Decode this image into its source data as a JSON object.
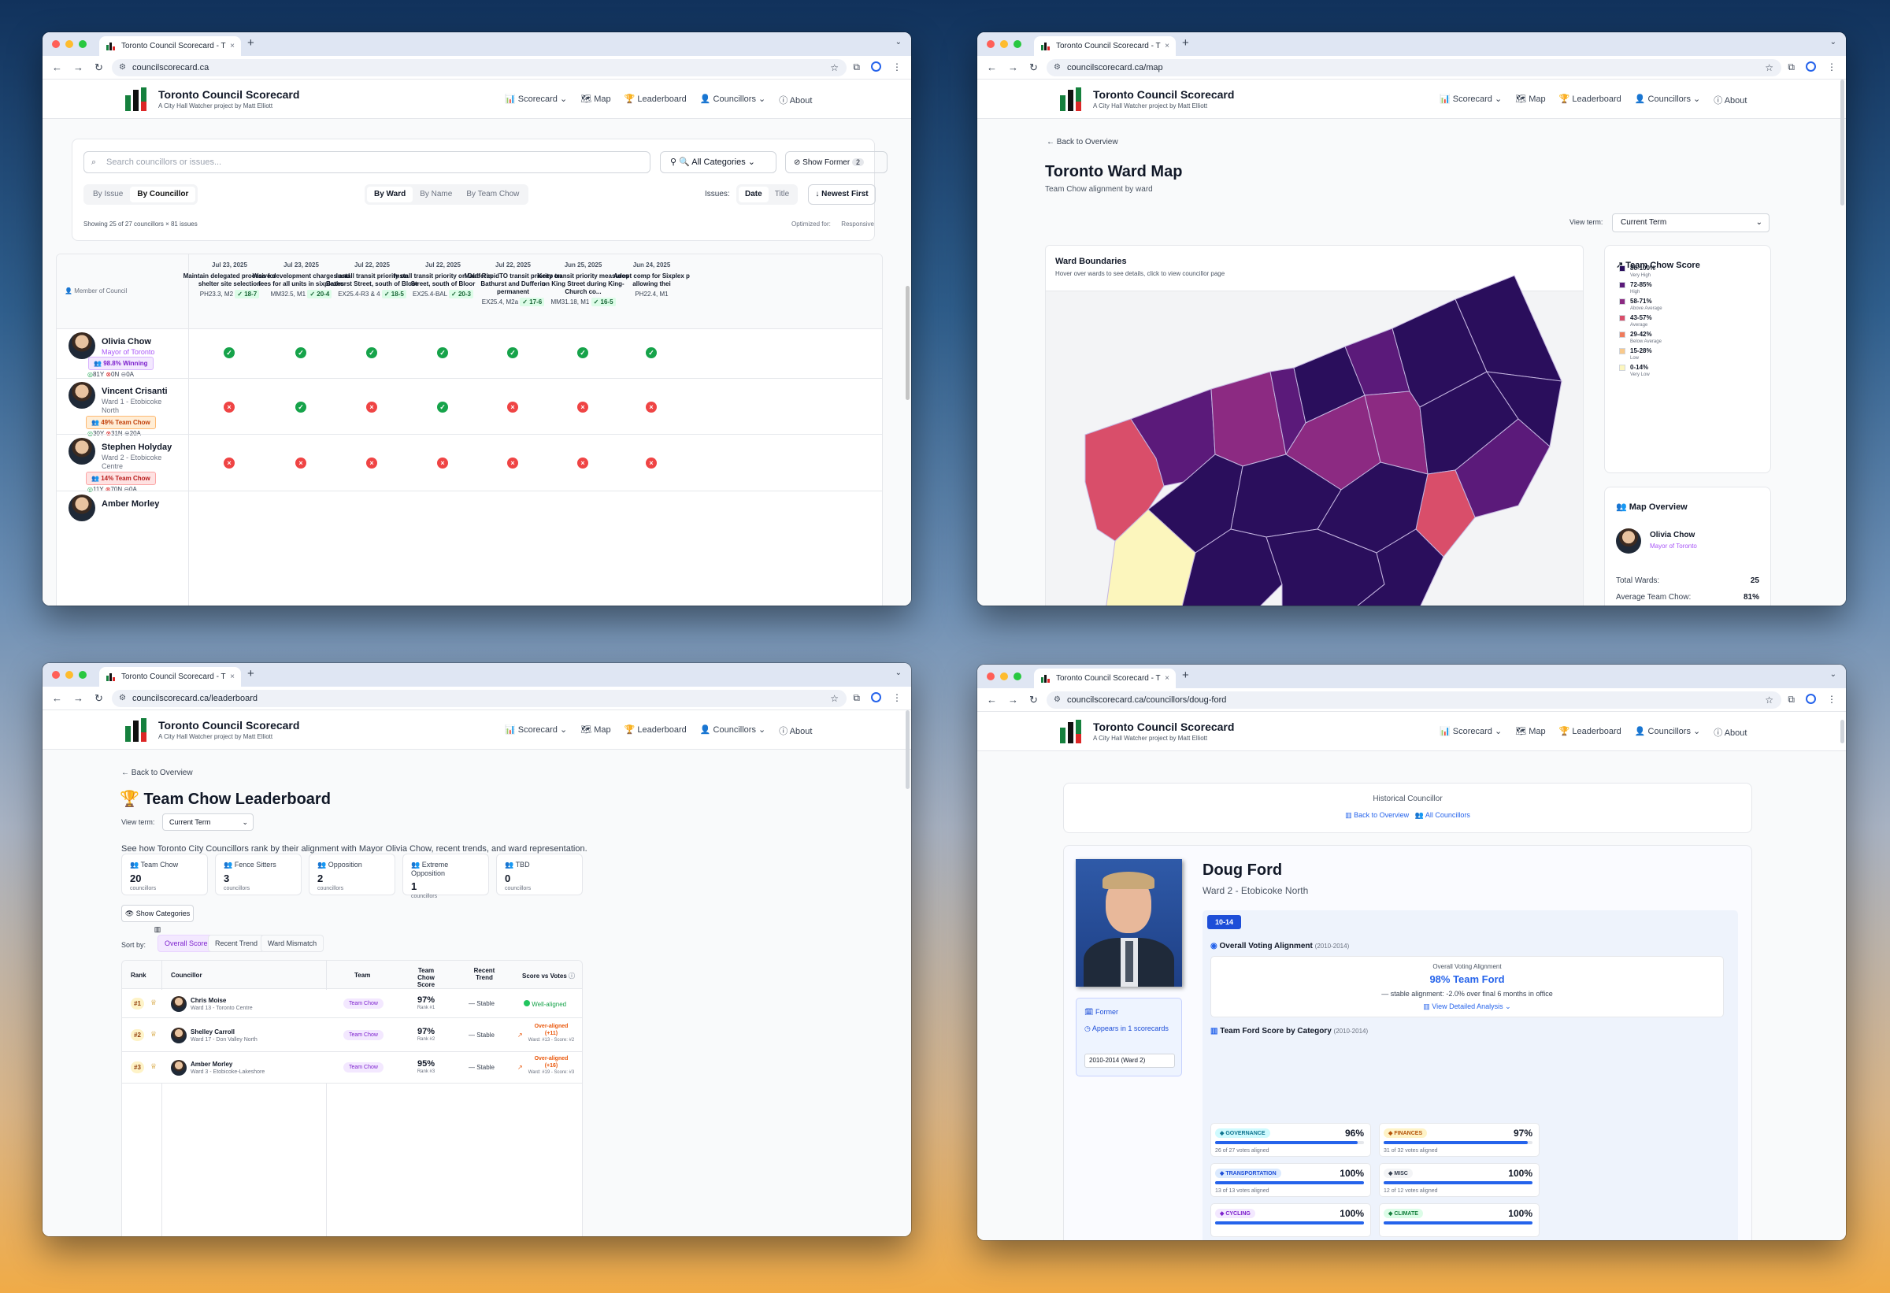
{
  "browser": {
    "tab_title": "Toronto Council Scorecard - T",
    "tab_close": "×",
    "new_tab": "+"
  },
  "site": {
    "title": "Toronto Council Scorecard",
    "subtitle": "A City Hall Watcher project by Matt Elliott",
    "nav": {
      "scorecard": "Scorecard",
      "map": "Map",
      "leaderboard": "Leaderboard",
      "councillors": "Councillors",
      "about": "About"
    }
  },
  "w1": {
    "url": "councilscorecard.ca",
    "search_placeholder": "Search councillors or issues...",
    "all_categories": "All Categories",
    "show_former": "Show Former",
    "show_former_count": "2",
    "view_by": [
      "By Issue",
      "By Councillor"
    ],
    "group_by": [
      "By Ward",
      "By Name",
      "By Team Chow"
    ],
    "issues_label": "Issues:",
    "sort": [
      "Date",
      "Title"
    ],
    "order": "Newest First",
    "showing": "Showing 25 of 27 councillors × 81 issues",
    "optimized": "Optimized for:",
    "optimized_val": "Responsive",
    "member_header": "Member of Council",
    "votes": [
      {
        "date": "Jul 23, 2025",
        "title": "Maintain delegated process for shelter site selection",
        "ref": "PH23.3, M2",
        "tally": "18-7"
      },
      {
        "date": "Jul 23, 2025",
        "title": "Waive development charges and fees for all units in sixplexes",
        "ref": "MM32.5, M1",
        "tally": "20-4"
      },
      {
        "date": "Jul 22, 2025",
        "title": "Install transit priority on Bathurst Street, south of Bloor",
        "ref": "EX25.4-R3 & 4",
        "tally": "18-5"
      },
      {
        "date": "Jul 22, 2025",
        "title": "Install transit priority on Dufferin Street, south of Bloor",
        "ref": "EX25.4-BAL",
        "tally": "20-3"
      },
      {
        "date": "Jul 22, 2025",
        "title": "Make RapidTO transit priority on Bathurst and Dufferin permanent",
        "ref": "EX25.4, M2a",
        "tally": "17-6"
      },
      {
        "date": "Jun 25, 2025",
        "title": "Keep transit priority measures on King Street during King-Church co...",
        "ref": "MM31.18, M1",
        "tally": "16-5"
      },
      {
        "date": "Jun 24, 2025",
        "title": "Adopt comp for Sixplex p allowing thei",
        "ref": "PH22.4, M1",
        "tally": ""
      }
    ],
    "councillors": [
      {
        "name": "Olivia Chow",
        "role": "Mayor of Toronto",
        "badge": "98.8% Winning",
        "y": "81Y",
        "n": "0N",
        "a": "0A"
      },
      {
        "name": "Vincent Crisanti",
        "role": "Ward 1 - Etobicoke North",
        "badge": "49% Team Chow",
        "y": "30Y",
        "n": "31N",
        "a": "20A"
      },
      {
        "name": "Stephen Holyday",
        "role": "Ward 2 - Etobicoke Centre",
        "badge": "14% Team Chow",
        "y": "11Y",
        "n": "70N",
        "a": "0A"
      },
      {
        "name": "Amber Morley",
        "role": "",
        "badge": "",
        "y": "",
        "n": "",
        "a": ""
      }
    ]
  },
  "w2": {
    "url": "councilscorecard.ca/map",
    "back": "Back to Overview",
    "title": "Toronto Ward Map",
    "subtitle": "Team Chow alignment by ward",
    "view_term_label": "View term:",
    "view_term": "Current Term",
    "map_title": "Ward Boundaries",
    "map_hint": "Hover over wards to see details, click to view councillor page",
    "legend_title": "Team Chow Score",
    "legend": [
      {
        "range": "86-100%",
        "label": "Very High",
        "color": "#2a0e5c"
      },
      {
        "range": "72-85%",
        "label": "High",
        "color": "#5b1a7a"
      },
      {
        "range": "58-71%",
        "label": "Above Average",
        "color": "#8c2a82"
      },
      {
        "range": "43-57%",
        "label": "Average",
        "color": "#d94e6a"
      },
      {
        "range": "29-42%",
        "label": "Below Average",
        "color": "#f07b5c"
      },
      {
        "range": "15-28%",
        "label": "Low",
        "color": "#f9c98b"
      },
      {
        "range": "0-14%",
        "label": "Very Low",
        "color": "#fcf6bd"
      }
    ],
    "overview_title": "Map Overview",
    "mayor_name": "Olivia Chow",
    "mayor_role": "Mayor of Toronto",
    "total_label": "Total Wards:",
    "total": "25",
    "avg_label": "Average Team Chow:",
    "avg": "81%"
  },
  "w3": {
    "url": "councilscorecard.ca/leaderboard",
    "back": "Back to Overview",
    "title": "Team Chow Leaderboard",
    "view_term_label": "View term:",
    "view_term": "Current Term",
    "intro": "See how Toronto City Councillors rank by their alignment with Mayor Olivia Chow, recent trends, and ward representation.",
    "cards": [
      {
        "label": "Team Chow",
        "count": "20",
        "unit": "councillors",
        "color": "#a855f7"
      },
      {
        "label": "Fence Sitters",
        "count": "3",
        "unit": "councillors",
        "color": "#f59e0b"
      },
      {
        "label": "Opposition",
        "count": "2",
        "unit": "councillors",
        "color": "#f97316"
      },
      {
        "label": "Extreme Opposition",
        "count": "1",
        "unit": "councillors",
        "color": "#ef4444"
      },
      {
        "label": "TBD",
        "count": "0",
        "unit": "councillors",
        "color": "#9ca3af"
      }
    ],
    "show_categories": "Show Categories",
    "sort_label": "Sort by:",
    "sort": [
      "Overall Score",
      "Recent Trend",
      "Ward Mismatch"
    ],
    "cols": [
      "Rank",
      "Councillor",
      "Team",
      "Team Chow Score",
      "Recent Trend",
      "Score vs Votes"
    ],
    "rows": [
      {
        "rank": "#1",
        "name": "Chris Moise",
        "ward": "Ward 13 - Toronto Centre",
        "team": "Team Chow",
        "score": "97%",
        "srank": "Rank #1",
        "trend": "Stable",
        "svv": "Well-aligned",
        "svv2": ""
      },
      {
        "rank": "#2",
        "name": "Shelley Carroll",
        "ward": "Ward 17 - Don Valley North",
        "team": "Team Chow",
        "score": "97%",
        "srank": "Rank #2",
        "trend": "Stable",
        "svv": "Over-aligned (+11)",
        "svv2": "Ward: #13 - Score: #2"
      },
      {
        "rank": "#3",
        "name": "Amber Morley",
        "ward": "Ward 3 - Etobicoke-Lakeshore",
        "team": "Team Chow",
        "score": "95%",
        "srank": "Rank #3",
        "trend": "Stable",
        "svv": "Over-aligned (+16)",
        "svv2": "Ward: #19 - Score: #3"
      }
    ]
  },
  "w4": {
    "url": "councilscorecard.ca/councillors/doug-ford",
    "hist": "Historical Councillor",
    "back": "Back to Overview",
    "all": "All Councillors",
    "name": "Doug Ford",
    "ward": "Ward 2 - Etobicoke North",
    "term_tab": "10-14",
    "former": "Former",
    "appears": "Appears in 1 scorecards",
    "term_box": "2010-2014 (Ward 2)",
    "overall_title": "Overall Voting Alignment",
    "overall_years": "(2010-2014)",
    "oa_label": "Overall Voting Alignment",
    "oa_value": "98% Team Ford",
    "oa_trend": "stable alignment:",
    "oa_trend2": "-2.0% over final 6 months in office",
    "detail": "View Detailed Analysis",
    "cat_title": "Team Ford Score by Category",
    "cat_years": "(2010-2014)",
    "cats": [
      {
        "tag": "GOVERNANCE",
        "pct": "96%",
        "fill": 0.96,
        "count": "26 of 27 votes aligned",
        "bg": "#cffafe",
        "fg": "#0e7490"
      },
      {
        "tag": "FINANCES",
        "pct": "97%",
        "fill": 0.97,
        "count": "31 of 32 votes aligned",
        "bg": "#fef3c7",
        "fg": "#b45309"
      },
      {
        "tag": "TRANSPORTATION",
        "pct": "100%",
        "fill": 1.0,
        "count": "13 of 13 votes aligned",
        "bg": "#dbeafe",
        "fg": "#1d4ed8"
      },
      {
        "tag": "MISC",
        "pct": "100%",
        "fill": 1.0,
        "count": "12 of 12 votes aligned",
        "bg": "#f3f4f6",
        "fg": "#374151"
      },
      {
        "tag": "CYCLING",
        "pct": "100%",
        "fill": 1.0,
        "count": "",
        "bg": "#f3e8ff",
        "fg": "#7e22ce"
      },
      {
        "tag": "CLIMATE",
        "pct": "100%",
        "fill": 1.0,
        "count": "",
        "bg": "#dcfce7",
        "fg": "#15803d"
      }
    ]
  }
}
